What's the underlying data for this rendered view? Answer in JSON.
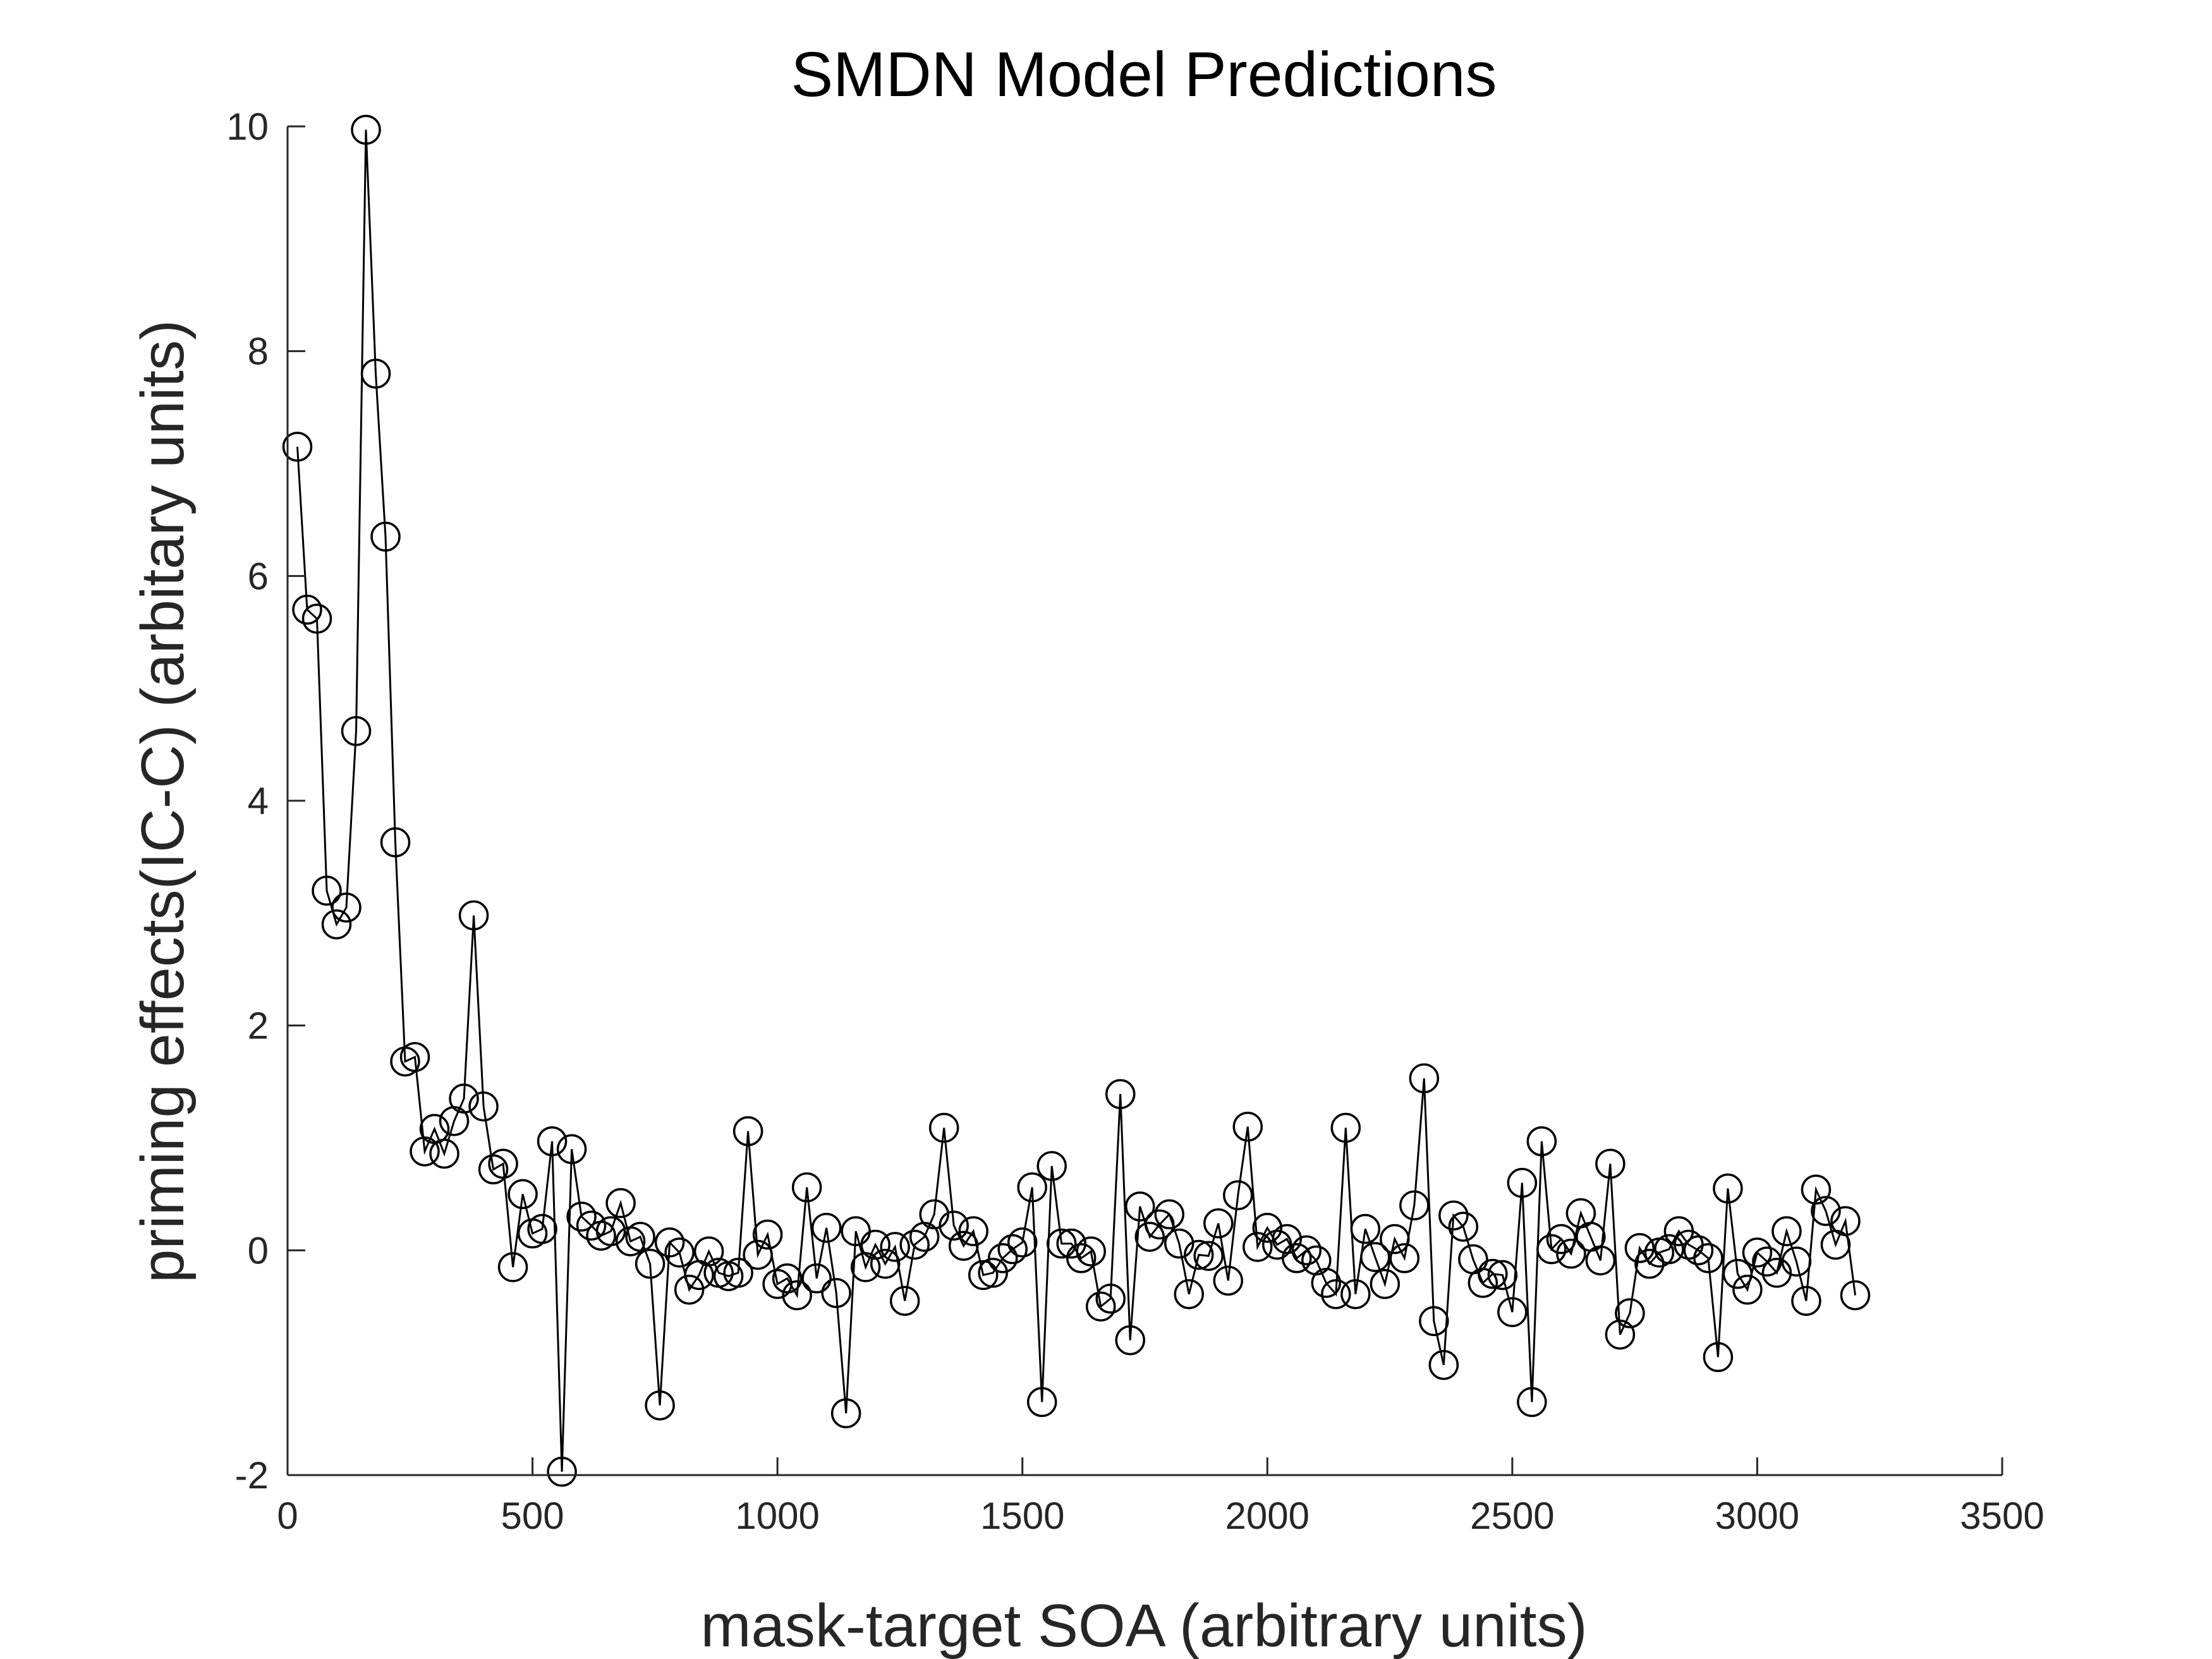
{
  "chart_data": {
    "type": "line",
    "title": "SMDN Model Predictions",
    "xlabel": "mask-target SOA (arbitrary units)",
    "ylabel": "priming effects(IC-C) (arbitary units)",
    "xlim": [
      0,
      3500
    ],
    "ylim": [
      -2,
      10
    ],
    "xticks": [
      "0",
      "500",
      "1000",
      "1500",
      "2000",
      "2500",
      "3000",
      "3500"
    ],
    "yticks": [
      "-2",
      "0",
      "2",
      "4",
      "6",
      "8",
      "10"
    ],
    "xtick_values": [
      0,
      500,
      1000,
      1500,
      2000,
      2500,
      3000,
      3500
    ],
    "ytick_values": [
      -2,
      0,
      2,
      4,
      6,
      8,
      10
    ],
    "grid": false,
    "marker": "open-circle",
    "line_color": "#000000",
    "series": [
      {
        "x": [
          20,
          40,
          60,
          80,
          100,
          120,
          140,
          160,
          180,
          200,
          220,
          240,
          260,
          280,
          300,
          320,
          340,
          360,
          380,
          400,
          420,
          440,
          460,
          480,
          500,
          520,
          540,
          560,
          580,
          600,
          620,
          640,
          660,
          680,
          700,
          720,
          740,
          760,
          780,
          800,
          820,
          840,
          860,
          880,
          900,
          920,
          940,
          960,
          980,
          1000,
          1020,
          1040,
          1060,
          1080,
          1100,
          1120,
          1140,
          1160,
          1180,
          1200,
          1220,
          1240,
          1260,
          1280,
          1300,
          1320,
          1340,
          1360,
          1380,
          1400,
          1420,
          1440,
          1460,
          1480,
          1500,
          1520,
          1540,
          1560,
          1580,
          1600,
          1620,
          1640,
          1660,
          1680,
          1700,
          1720,
          1740,
          1760,
          1780,
          1800,
          1820,
          1840,
          1860,
          1880,
          1900,
          1920,
          1940,
          1960,
          1980,
          2000,
          2020,
          2040,
          2060,
          2080,
          2100,
          2120,
          2140,
          2160,
          2180,
          2200,
          2220,
          2240,
          2260,
          2280,
          2300,
          2320,
          2340,
          2360,
          2380,
          2400,
          2420,
          2440,
          2460,
          2480,
          2500,
          2520,
          2540,
          2560,
          2580,
          2600,
          2620,
          2640,
          2660,
          2680,
          2700,
          2720,
          2740,
          2760,
          2780,
          2800,
          2820,
          2840,
          2860,
          2880,
          2900,
          2920,
          2940,
          2960,
          2980,
          3000,
          3020,
          3040,
          3060,
          3080,
          3100,
          3120,
          3140,
          3160,
          3180,
          3200
        ],
        "y": [
          7.15,
          5.7,
          5.62,
          3.2,
          2.9,
          3.05,
          4.62,
          9.97,
          7.8,
          6.35,
          3.63,
          1.68,
          1.72,
          0.88,
          1.08,
          0.86,
          1.15,
          1.35,
          2.98,
          1.28,
          0.72,
          0.77,
          -0.15,
          0.5,
          0.15,
          0.19,
          0.97,
          -1.97,
          0.9,
          0.3,
          0.22,
          0.13,
          0.17,
          0.42,
          0.08,
          0.12,
          -0.12,
          -1.38,
          0.07,
          -0.02,
          -0.35,
          -0.22,
          -0.01,
          -0.2,
          -0.23,
          -0.2,
          1.06,
          -0.04,
          0.14,
          -0.3,
          -0.25,
          -0.4,
          0.56,
          -0.25,
          0.2,
          -0.38,
          -1.45,
          0.17,
          -0.15,
          0.05,
          -0.12,
          0.03,
          -0.45,
          0.05,
          0.12,
          0.32,
          1.09,
          0.22,
          0.04,
          0.17,
          -0.22,
          -0.2,
          -0.07,
          0.01,
          0.07,
          0.56,
          -1.35,
          0.75,
          0.06,
          0.06,
          -0.07,
          -0.01,
          -0.5,
          -0.43,
          1.39,
          -0.8,
          0.39,
          0.12,
          0.23,
          0.32,
          0.06,
          -0.39,
          -0.04,
          -0.05,
          0.24,
          -0.27,
          0.49,
          1.1,
          0.03,
          0.2,
          0.05,
          0.1,
          -0.07,
          0.0,
          -0.09,
          -0.29,
          -0.39,
          1.09,
          -0.39,
          0.19,
          -0.06,
          -0.3,
          0.1,
          -0.07,
          0.4,
          1.53,
          -0.63,
          -1.02,
          0.31,
          0.21,
          -0.08,
          -0.29,
          -0.21,
          -0.22,
          -0.55,
          0.6,
          -1.35,
          0.97,
          0.01,
          0.1,
          -0.03,
          0.33,
          0.12,
          -0.09,
          0.77,
          -0.75,
          -0.56,
          0.02,
          -0.12,
          -0.02,
          0.01,
          0.17,
          0.05,
          0.0,
          -0.07,
          -0.95,
          0.55,
          -0.21,
          -0.35,
          -0.02,
          -0.1,
          -0.2,
          0.17,
          -0.1,
          -0.45,
          0.54,
          0.35,
          0.05,
          0.26,
          -0.4
        ]
      }
    ]
  }
}
